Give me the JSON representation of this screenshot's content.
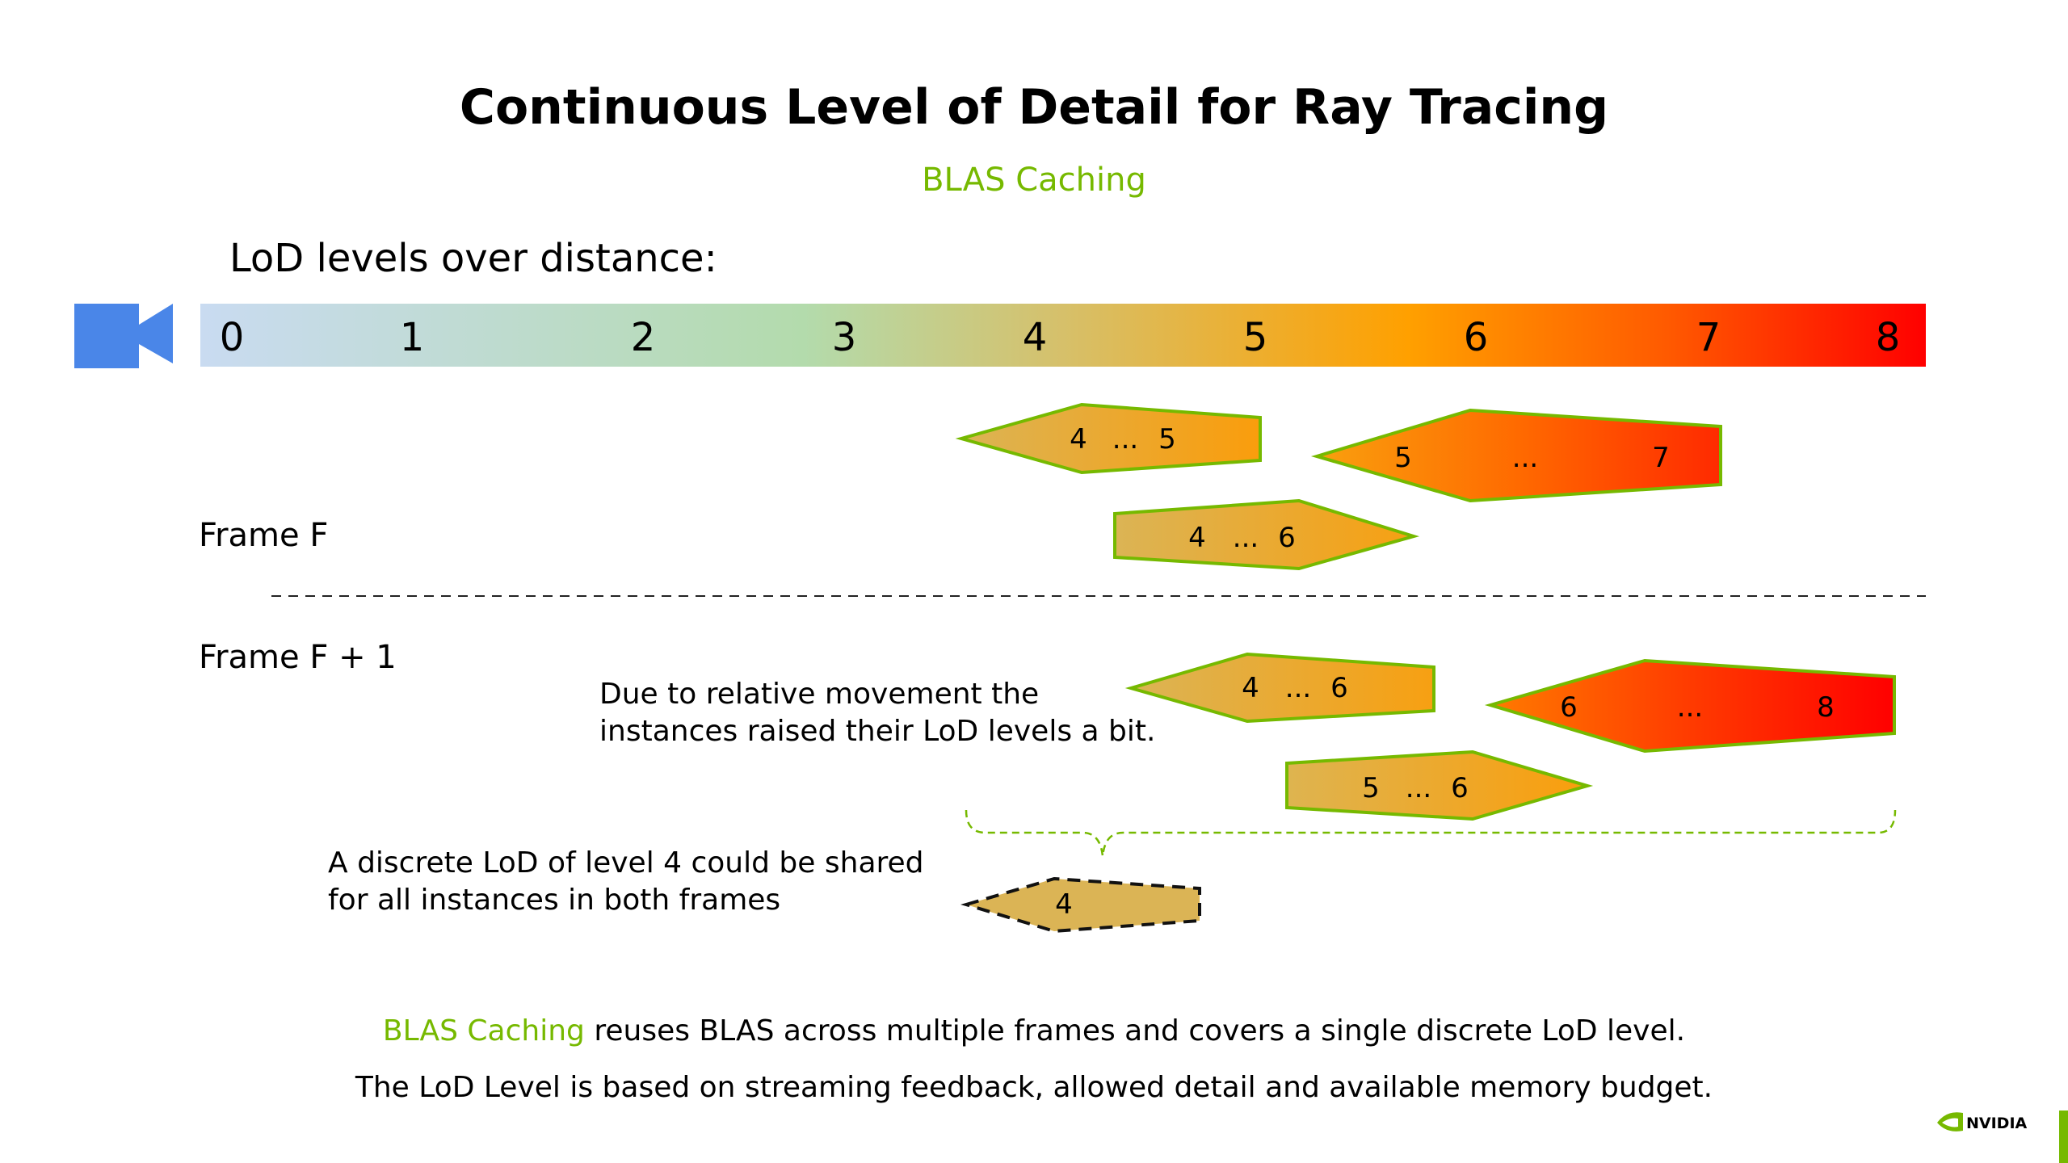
{
  "title": "Continuous Level of Detail for Ray Tracing",
  "subtitle": "BLAS Caching",
  "lod_heading": "LoD levels over distance:",
  "scale_numbers": [
    "0",
    "1",
    "2",
    "3",
    "4",
    "5",
    "6",
    "7",
    "8"
  ],
  "frame_f_label": "Frame F",
  "frame_f1_label": "Frame F + 1",
  "frame_f_shapes": [
    {
      "from": "4",
      "ellipsis": "...",
      "to": "5"
    },
    {
      "from": "5",
      "ellipsis": "...",
      "to": "7"
    },
    {
      "from": "4",
      "ellipsis": "...",
      "to": "6"
    }
  ],
  "frame_f1_shapes": [
    {
      "from": "4",
      "ellipsis": "...",
      "to": "6"
    },
    {
      "from": "6",
      "ellipsis": "...",
      "to": "8"
    },
    {
      "from": "5",
      "ellipsis": "...",
      "to": "6"
    }
  ],
  "movement_note": {
    "line1": "Due to relative movement the",
    "line2": "instances raised their LoD levels a bit."
  },
  "shared_note": {
    "line1": "A discrete LoD of level 4 could be shared",
    "line2": "for all instances in both frames"
  },
  "shared_shape_label": "4",
  "footer": {
    "highlight": "BLAS Caching",
    "line1_rest": " reuses BLAS across multiple frames and covers a single discrete LoD level.",
    "line2": "The LoD Level is based on streaming feedback, allowed detail and available memory budget."
  },
  "logo_text": "NVIDIA",
  "colors": {
    "accent_green": "#76b900",
    "camera_blue": "#4a86e8",
    "gradient": [
      "#c6d9f1",
      "#b5dba3",
      "#f59e0b",
      "#ff0000"
    ]
  }
}
